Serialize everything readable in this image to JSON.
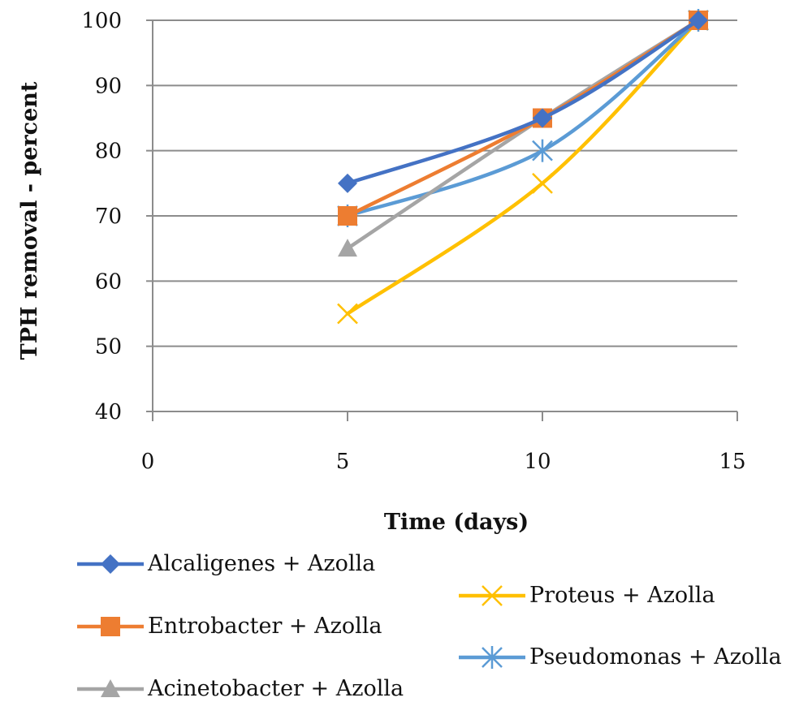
{
  "chart_data": {
    "type": "line",
    "title": "",
    "xlabel": "Time (days)",
    "ylabel": "TPH removal - percent",
    "xlim": [
      0,
      15
    ],
    "ylim": [
      40,
      100
    ],
    "x_ticks": [
      "0",
      "5",
      "10",
      "15"
    ],
    "y_ticks": [
      "40",
      "50",
      "60",
      "70",
      "80",
      "90",
      "100"
    ],
    "grid": "horizontal",
    "legend_position": "bottom",
    "series": [
      {
        "name": "Alcaligenes + Azolla",
        "x": [
          5,
          10,
          14
        ],
        "y": [
          75,
          85,
          100
        ],
        "color": "#4472C4",
        "marker": "diamond"
      },
      {
        "name": "Entrobacter + Azolla",
        "x": [
          5,
          10,
          14
        ],
        "y": [
          70,
          85,
          100
        ],
        "color": "#ED7D31",
        "marker": "square"
      },
      {
        "name": "Acinetobacter + Azolla",
        "x": [
          5,
          10,
          14
        ],
        "y": [
          65,
          85,
          100
        ],
        "color": "#A5A5A5",
        "marker": "triangle"
      },
      {
        "name": "Proteus + Azolla",
        "x": [
          5,
          10,
          14
        ],
        "y": [
          55,
          75,
          100
        ],
        "color": "#FFC000",
        "marker": "x"
      },
      {
        "name": "Pseudomonas + Azolla",
        "x": [
          5,
          10,
          14
        ],
        "y": [
          70,
          80,
          100
        ],
        "color": "#5B9BD5",
        "marker": "star"
      }
    ]
  }
}
